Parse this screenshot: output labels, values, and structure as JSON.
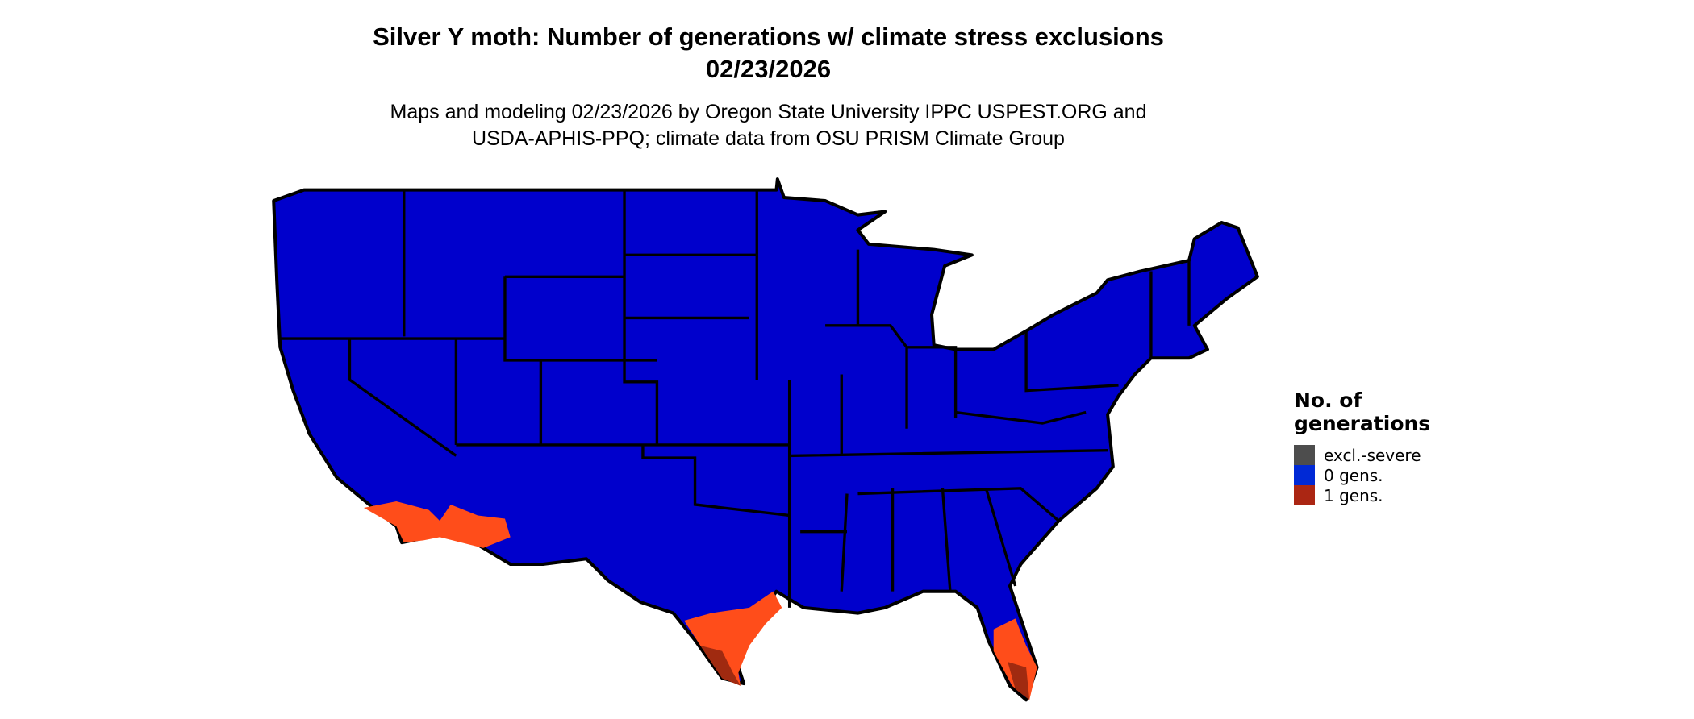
{
  "title": {
    "line1": "Silver Y moth: Number of generations w/ climate stress exclusions",
    "line2": "02/23/2026"
  },
  "subtitle": {
    "line1": "Maps and modeling 02/23/2026 by Oregon State University IPPC USPEST.ORG and",
    "line2": "USDA-APHIS-PPQ; climate data from OSU PRISM Climate Group"
  },
  "legend": {
    "title_line1": "No. of",
    "title_line2": "generations",
    "items": [
      {
        "label": "excl.-severe",
        "color": "#4d4d4d"
      },
      {
        "label": "0 gens.",
        "color": "#0029d6"
      },
      {
        "label": "1 gens.",
        "color": "#ab2613"
      }
    ]
  },
  "map_colors": {
    "zero_gens_fill": "#0000cc",
    "one_gen_fill": "#ff4d1a",
    "one_gen_dark": "#a02a10",
    "borders": "#000000"
  }
}
